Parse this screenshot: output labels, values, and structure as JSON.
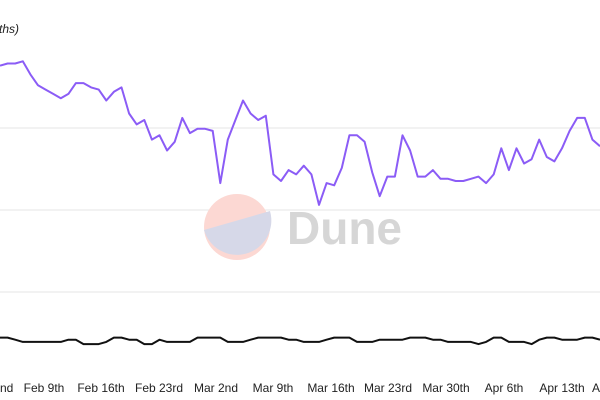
{
  "chart_data": {
    "type": "line",
    "ylabel": "ths)",
    "x_tick_labels": [
      "Feb 9th",
      "Feb 16th",
      "Feb 23rd",
      "Mar 2nd",
      "Mar 9th",
      "Mar 16th",
      "Mar 23rd",
      "Mar 30th",
      "Apr 6th",
      "Apr 13th"
    ],
    "x_tick_labels_partial": [
      "nd",
      "A"
    ],
    "grid": true,
    "watermark": "Dune",
    "series": [
      {
        "color": "#8b5cf6",
        "values": [
          109,
          110,
          110,
          111,
          105,
          100,
          98,
          96,
          94,
          96,
          101,
          101,
          99,
          98,
          93,
          97,
          99,
          87,
          82,
          84,
          75,
          77,
          70,
          74,
          85,
          78,
          80,
          80,
          79,
          55,
          75,
          84,
          93,
          87,
          84,
          86,
          59,
          56,
          61,
          59,
          63,
          59,
          45,
          55,
          54,
          62,
          77,
          77,
          74,
          60,
          49,
          58,
          58,
          77,
          70,
          58,
          58,
          61,
          57,
          57,
          56,
          56,
          57,
          58,
          55,
          59,
          71,
          61,
          71,
          64,
          66,
          75,
          67,
          65,
          71,
          79,
          85,
          85,
          75,
          72
        ]
      },
      {
        "color": "#111111",
        "values": [
          -16,
          -16,
          -17,
          -18,
          -18,
          -18,
          -18,
          -18,
          -18,
          -17,
          -17,
          -19,
          -19,
          -19,
          -18,
          -16,
          -16,
          -17,
          -17,
          -19,
          -19,
          -17,
          -18,
          -18,
          -18,
          -18,
          -16,
          -16,
          -16,
          -16,
          -18,
          -18,
          -18,
          -17,
          -16,
          -16,
          -16,
          -16,
          -17,
          -17,
          -18,
          -18,
          -18,
          -17,
          -16,
          -16,
          -16,
          -18,
          -18,
          -18,
          -17,
          -17,
          -17,
          -17,
          -16,
          -16,
          -16,
          -17,
          -17,
          -18,
          -18,
          -18,
          -18,
          -19,
          -18,
          -16,
          -16,
          -18,
          -18,
          -18,
          -19,
          -17,
          -16,
          -16,
          -17,
          -17,
          -17,
          -16,
          -16,
          -17
        ]
      }
    ]
  }
}
